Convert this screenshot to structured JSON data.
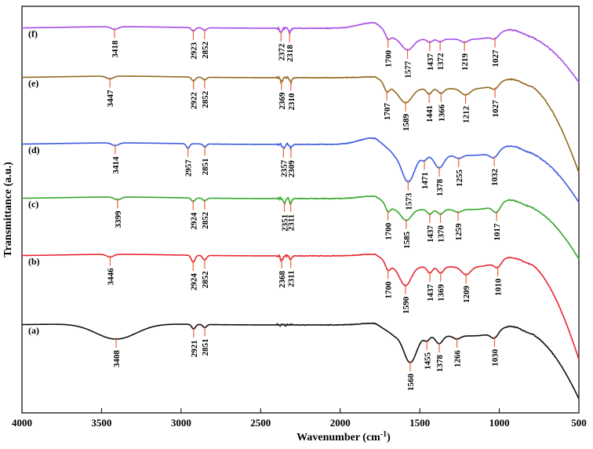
{
  "chart_data": {
    "type": "line",
    "title": "",
    "xlabel": "Wavenumber (cm",
    "xlabel_sup": "-1",
    "xlabel_end": ")",
    "ylabel": "Transmittance (a.u.)",
    "xlim": [
      4000,
      500
    ],
    "x_ticks": [
      "4000",
      "3500",
      "3000",
      "2500",
      "2000",
      "1500",
      "1000",
      "500"
    ],
    "x_tick_values": [
      4000,
      3500,
      3000,
      2500,
      2000,
      1500,
      1000,
      500
    ],
    "marker_color": "#E8653A",
    "series": [
      {
        "name": "(f)",
        "color": "#A54BE6",
        "offset": 5,
        "baseline": 34,
        "plateau": 27,
        "tail": 95,
        "dips": [
          [
            3418,
            3.5,
            30
          ],
          [
            2923,
            4.5,
            16
          ],
          [
            2852,
            3.5,
            16
          ],
          [
            2372,
            6,
            10
          ],
          [
            2318,
            6,
            10
          ],
          [
            1700,
            8,
            22
          ],
          [
            1577,
            14,
            50
          ],
          [
            1437,
            4,
            22
          ],
          [
            1372,
            3.5,
            22
          ],
          [
            1219,
            4,
            30
          ],
          [
            1027,
            5,
            30
          ]
        ],
        "peaks": [
          {
            "wn": 3418,
            "label": "3418"
          },
          {
            "wn": 2923,
            "label": "2923"
          },
          {
            "wn": 2852,
            "label": "2852"
          },
          {
            "wn": 2372,
            "label": "2372"
          },
          {
            "wn": 2318,
            "label": "2318"
          },
          {
            "wn": 1700,
            "label": "1700"
          },
          {
            "wn": 1577,
            "label": "1577"
          },
          {
            "wn": 1437,
            "label": "1437"
          },
          {
            "wn": 1372,
            "label": "1372"
          },
          {
            "wn": 1219,
            "label": "1219"
          },
          {
            "wn": 1027,
            "label": "1027"
          }
        ]
      },
      {
        "name": "(e)",
        "color": "#8F6A1E",
        "offset": 4,
        "baseline": 97,
        "plateau": 96,
        "tail": 210,
        "dips": [
          [
            3447,
            3.5,
            30
          ],
          [
            2922,
            5,
            16
          ],
          [
            2852,
            3.5,
            16
          ],
          [
            2369,
            6,
            10
          ],
          [
            2310,
            6,
            10
          ],
          [
            1707,
            10,
            22
          ],
          [
            1589,
            18,
            55
          ],
          [
            1441,
            7,
            22
          ],
          [
            1366,
            6,
            25
          ],
          [
            1212,
            8,
            40
          ],
          [
            1027,
            6,
            30
          ]
        ],
        "peaks": [
          {
            "wn": 3447,
            "label": "3447"
          },
          {
            "wn": 2922,
            "label": "2922"
          },
          {
            "wn": 2852,
            "label": "2852"
          },
          {
            "wn": 2369,
            "label": "2369"
          },
          {
            "wn": 2310,
            "label": "2310"
          },
          {
            "wn": 1707,
            "label": "1707"
          },
          {
            "wn": 1589,
            "label": "1589"
          },
          {
            "wn": 1441,
            "label": "1441"
          },
          {
            "wn": 1366,
            "label": "1366"
          },
          {
            "wn": 1212,
            "label": "1212"
          },
          {
            "wn": 1027,
            "label": "1027"
          }
        ]
      },
      {
        "name": "(d)",
        "color": "#3B5BE0",
        "offset": 3,
        "baseline": 182,
        "plateau": 174,
        "tail": 248,
        "dips": [
          [
            3414,
            3.5,
            30
          ],
          [
            2957,
            6,
            14
          ],
          [
            2851,
            4,
            14
          ],
          [
            2357,
            5,
            10
          ],
          [
            2309,
            5,
            10
          ],
          [
            1573,
            34,
            55
          ],
          [
            1471,
            6,
            22
          ],
          [
            1378,
            16,
            40
          ],
          [
            1255,
            4,
            30
          ],
          [
            1032,
            8,
            35
          ]
        ],
        "peaks": [
          {
            "wn": 3414,
            "label": "3414"
          },
          {
            "wn": 2957,
            "label": "2957"
          },
          {
            "wn": 2851,
            "label": "2851"
          },
          {
            "wn": 2357,
            "label": "2357"
          },
          {
            "wn": 2309,
            "label": "2309"
          },
          {
            "wn": 1573,
            "label": "1573"
          },
          {
            "wn": 1471,
            "label": "1471"
          },
          {
            "wn": 1378,
            "label": "1378"
          },
          {
            "wn": 1255,
            "label": "1255"
          },
          {
            "wn": 1032,
            "label": "1032"
          }
        ]
      },
      {
        "name": "(c)",
        "color": "#33A82A",
        "offset": 2,
        "baseline": 251,
        "plateau": 248,
        "tail": 320,
        "dips": [
          [
            3399,
            3.5,
            30
          ],
          [
            2924,
            4.5,
            16
          ],
          [
            2852,
            3.5,
            16
          ],
          [
            2351,
            6,
            10
          ],
          [
            2311,
            6,
            10
          ],
          [
            1700,
            9,
            20
          ],
          [
            1585,
            14,
            45
          ],
          [
            1437,
            6,
            22
          ],
          [
            1370,
            6,
            25
          ],
          [
            1259,
            3.5,
            30
          ],
          [
            1017,
            10,
            32
          ]
        ],
        "peaks": [
          {
            "wn": 3399,
            "label": "3399"
          },
          {
            "wn": 2924,
            "label": "2924"
          },
          {
            "wn": 2852,
            "label": "2852"
          },
          {
            "wn": 2351,
            "label": "2351"
          },
          {
            "wn": 2311,
            "label": "2311"
          },
          {
            "wn": 1700,
            "label": "1700"
          },
          {
            "wn": 1585,
            "label": "1585"
          },
          {
            "wn": 1437,
            "label": "1437"
          },
          {
            "wn": 1370,
            "label": "1370"
          },
          {
            "wn": 1259,
            "label": "1259"
          },
          {
            "wn": 1017,
            "label": "1017"
          }
        ]
      },
      {
        "name": "(b)",
        "color": "#E8272F",
        "offset": 1,
        "baseline": 324,
        "plateau": 322,
        "tail": 448,
        "dips": [
          [
            3446,
            3.5,
            30
          ],
          [
            2924,
            9,
            16
          ],
          [
            2852,
            6,
            16
          ],
          [
            2368,
            6,
            10
          ],
          [
            2311,
            6,
            10
          ],
          [
            1700,
            10,
            22
          ],
          [
            1590,
            24,
            50
          ],
          [
            1437,
            8,
            22
          ],
          [
            1369,
            8,
            25
          ],
          [
            1209,
            10,
            40
          ],
          [
            1010,
            8,
            30
          ]
        ],
        "peaks": [
          {
            "wn": 3446,
            "label": "3446"
          },
          {
            "wn": 2924,
            "label": "2924"
          },
          {
            "wn": 2852,
            "label": "2852"
          },
          {
            "wn": 2368,
            "label": "2368"
          },
          {
            "wn": 2311,
            "label": "2311"
          },
          {
            "wn": 1700,
            "label": "1700"
          },
          {
            "wn": 1590,
            "label": "1590"
          },
          {
            "wn": 1437,
            "label": "1437"
          },
          {
            "wn": 1369,
            "label": "1369"
          },
          {
            "wn": 1209,
            "label": "1209"
          },
          {
            "wn": 1010,
            "label": "1010"
          }
        ]
      },
      {
        "name": "(a)",
        "color": "#111111",
        "offset": 0,
        "baseline": 412,
        "plateau": 410,
        "tail": 498,
        "dips": [
          [
            3408,
            20,
            180
          ],
          [
            2921,
            6,
            16
          ],
          [
            2851,
            4,
            16
          ],
          [
            1560,
            34,
            55
          ],
          [
            1455,
            6,
            22
          ],
          [
            1378,
            10,
            30
          ],
          [
            1266,
            4,
            30
          ],
          [
            1030,
            8,
            32
          ]
        ],
        "peaks": [
          {
            "wn": 3408,
            "label": "3408"
          },
          {
            "wn": 2921,
            "label": "2921"
          },
          {
            "wn": 2851,
            "label": "2851"
          },
          {
            "wn": 1560,
            "label": "1560"
          },
          {
            "wn": 1455,
            "label": "1455"
          },
          {
            "wn": 1378,
            "label": "1378"
          },
          {
            "wn": 1266,
            "label": "1266"
          },
          {
            "wn": 1030,
            "label": "1030"
          }
        ]
      }
    ]
  }
}
